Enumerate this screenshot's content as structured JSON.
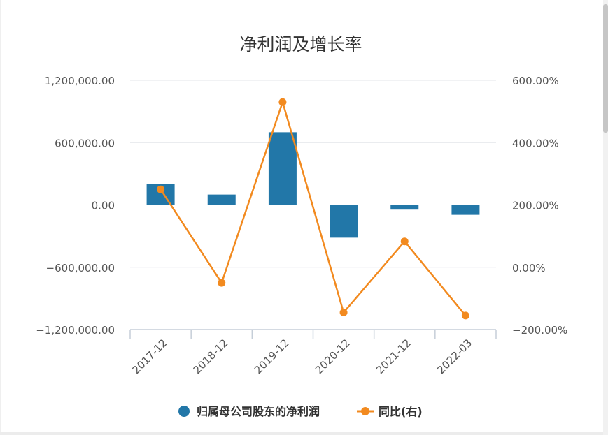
{
  "chart_data": {
    "type": "bar",
    "title": "净利润及增长率",
    "categories": [
      "2017-12",
      "2018-12",
      "2019-12",
      "2020-12",
      "2021-12",
      "2022-03"
    ],
    "series": [
      {
        "name": "归属母公司股东的净利润",
        "type": "bar",
        "axis": "left",
        "color": "#2277a8",
        "values": [
          205000,
          100000,
          700000,
          -315000,
          -45000,
          -95000
        ]
      },
      {
        "name": "同比(右)",
        "type": "line",
        "axis": "right",
        "color": "#f28a1f",
        "values": [
          250,
          -50,
          530,
          -145,
          83,
          -155
        ]
      }
    ],
    "y_left": {
      "min": -1200000,
      "max": 1200000,
      "ticks": [
        1200000,
        600000,
        0,
        -600000,
        -1200000
      ],
      "tick_labels": [
        "1,200,000.00",
        "600,000.00",
        "0.00",
        "−600,000.00",
        "−1,200,000.00"
      ]
    },
    "y_right": {
      "min": -200,
      "max": 600,
      "ticks": [
        600,
        400,
        200,
        0,
        -200
      ],
      "tick_labels": [
        "600.00%",
        "400.00%",
        "200.00%",
        "0.00%",
        "−200.00%"
      ]
    },
    "grid": true,
    "legend": "bottom-center"
  }
}
